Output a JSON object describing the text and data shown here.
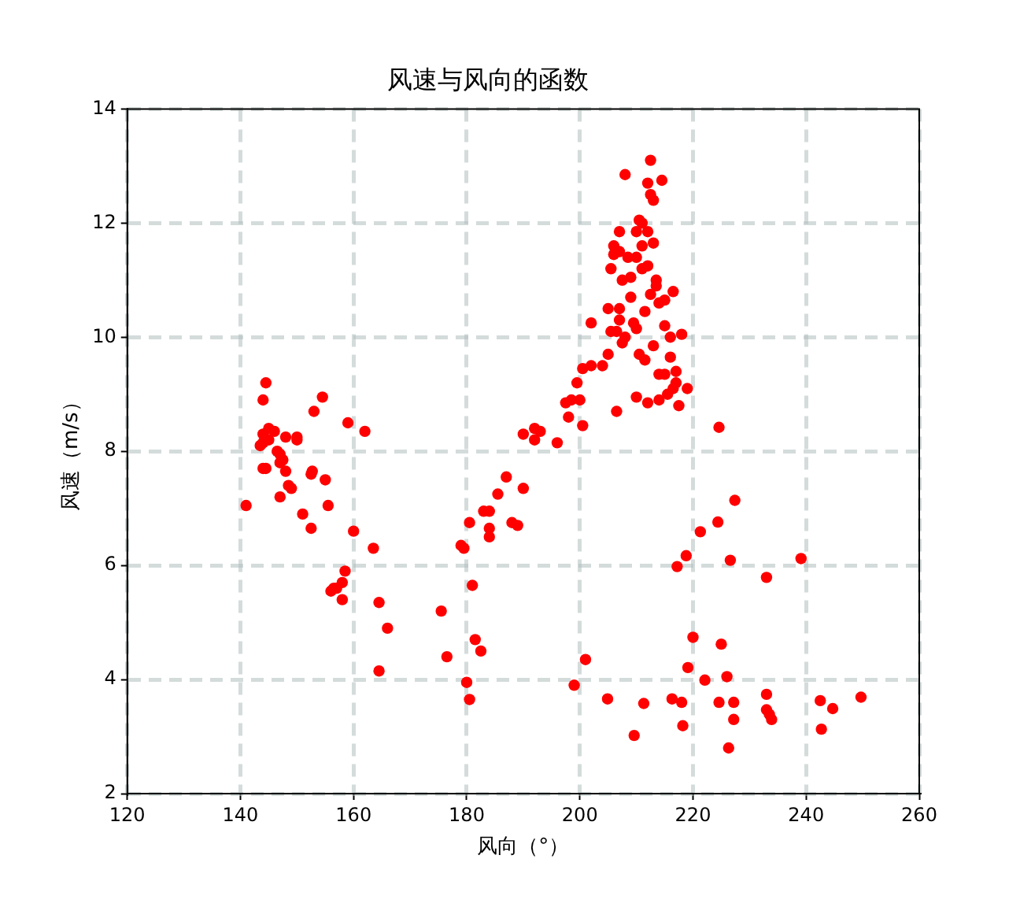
{
  "chart_data": {
    "type": "scatter",
    "title": "风速与风向的函数",
    "xlabel": "风向（°）",
    "ylabel": "风速（m/s）",
    "xlim": [
      120,
      260
    ],
    "xticks": [
      120,
      140,
      160,
      180,
      200,
      220,
      240,
      260
    ],
    "ylim": [
      2,
      14
    ],
    "yticks": [
      2,
      4,
      6,
      8,
      10,
      12,
      14
    ],
    "grid": true,
    "line_style": "dashed",
    "marker": "circle",
    "series": [
      {
        "color": "#ff0000",
        "x": [
          141,
          143.5,
          144,
          144,
          144.5,
          144,
          144.5,
          145,
          145,
          144,
          146,
          146.5,
          147,
          147,
          147.5,
          147,
          148,
          148,
          148.5,
          149,
          150,
          150,
          151,
          152.5,
          152.7,
          152.5,
          153,
          154.5,
          155,
          155.5,
          156,
          156.5,
          157,
          158,
          158,
          158.5,
          159,
          160,
          162,
          163.5,
          164.5,
          164.5,
          166,
          175.5,
          176.5,
          179,
          179.5,
          180,
          180.5,
          180.5,
          181,
          181.5,
          182.5,
          183,
          184,
          184,
          184,
          185.5,
          187,
          188,
          189,
          190,
          190,
          192,
          192,
          193,
          196,
          197.5,
          198,
          198.5,
          199,
          199.5,
          200.5,
          200,
          200.5,
          201,
          202,
          202,
          204,
          205,
          205,
          205.5,
          205.5,
          206,
          206,
          206.5,
          206.5,
          207,
          207,
          207,
          207,
          207.5,
          207.5,
          208,
          208,
          208.5,
          209,
          209,
          209.5,
          210,
          210,
          210,
          210.5,
          210.5,
          211,
          211,
          211,
          211.5,
          211.5,
          212,
          212,
          212,
          212.5,
          212.5,
          213,
          212.5,
          213,
          213.5,
          213,
          213.5,
          214,
          214,
          214.5,
          214,
          215,
          215,
          215,
          215.5,
          216,
          216,
          216.5,
          216.5,
          217,
          217,
          217.5,
          218,
          219,
          210,
          212,
          224.6,
          227.4,
          224.4,
          221.3,
          218.8,
          217.2,
          226.6,
          239.1,
          233,
          220,
          225,
          219.1,
          222.1,
          226,
          204.9,
          211.3,
          216.3,
          218,
          224.6,
          227.2,
          233,
          233,
          233.5,
          233.9,
          227.2,
          218.2,
          209.6,
          226.3,
          242.5,
          244.7,
          249.7,
          242.7
        ],
        "values": [
          7.05,
          8.1,
          8.3,
          8.9,
          9.2,
          7.7,
          7.7,
          8.4,
          8.2,
          8.15,
          8.35,
          8.0,
          7.95,
          7.8,
          7.85,
          7.2,
          7.65,
          8.25,
          7.4,
          7.35,
          8.2,
          8.25,
          6.9,
          7.6,
          7.65,
          6.65,
          8.7,
          8.95,
          7.5,
          7.05,
          5.55,
          5.6,
          5.6,
          5.4,
          5.7,
          5.9,
          8.5,
          6.6,
          8.35,
          6.3,
          5.35,
          4.15,
          4.9,
          5.2,
          4.4,
          6.35,
          6.3,
          3.95,
          6.75,
          3.65,
          5.65,
          4.7,
          4.5,
          6.95,
          6.95,
          6.65,
          6.5,
          7.25,
          7.55,
          6.75,
          6.7,
          7.35,
          8.3,
          8.2,
          8.4,
          8.35,
          8.15,
          8.85,
          8.6,
          8.9,
          3.9,
          9.2,
          8.45,
          8.9,
          9.45,
          4.35,
          9.5,
          10.25,
          9.5,
          9.7,
          10.5,
          10.1,
          11.2,
          11.6,
          11.45,
          10.1,
          8.7,
          11.85,
          11.5,
          10.3,
          10.5,
          9.9,
          11.0,
          12.85,
          10.0,
          11.4,
          10.7,
          11.05,
          10.25,
          11.4,
          11.85,
          10.15,
          9.7,
          12.05,
          11.6,
          12.0,
          11.2,
          9.6,
          10.45,
          12.7,
          11.85,
          11.25,
          13.1,
          12.5,
          12.4,
          10.75,
          11.65,
          11.0,
          9.85,
          10.9,
          10.6,
          9.35,
          12.75,
          8.9,
          10.65,
          10.2,
          9.35,
          9.0,
          10.0,
          9.65,
          10.8,
          9.1,
          9.4,
          9.2,
          8.8,
          10.05,
          9.1,
          8.95,
          8.85,
          8.42,
          7.14,
          6.76,
          6.59,
          6.17,
          5.98,
          6.09,
          6.12,
          5.79,
          4.74,
          4.62,
          4.21,
          3.99,
          4.05,
          3.66,
          3.58,
          3.66,
          3.6,
          3.6,
          3.6,
          3.74,
          3.47,
          3.39,
          3.3,
          3.3,
          3.19,
          3.02,
          2.8,
          3.63,
          3.49,
          3.69,
          3.13
        ]
      }
    ]
  }
}
